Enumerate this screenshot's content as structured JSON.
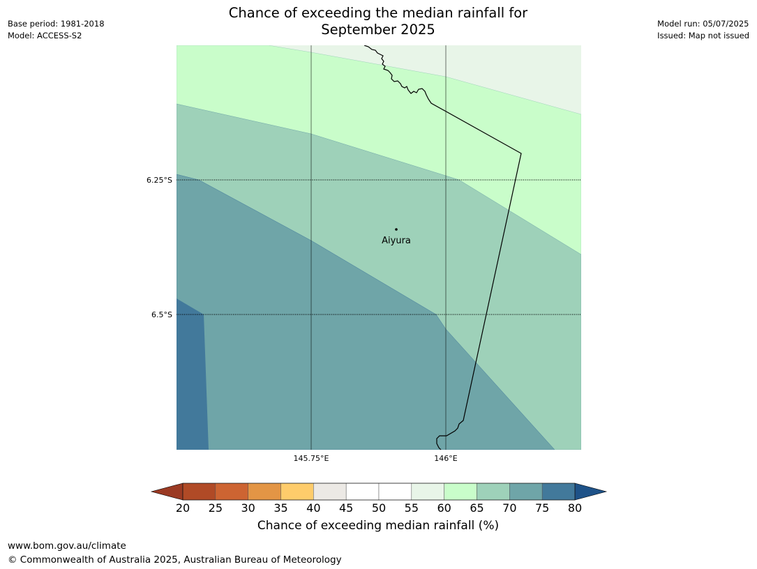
{
  "title_line1": "Chance of exceeding the median rainfall for",
  "title_line2": "September 2025",
  "meta_left": {
    "base_period": "Base period: 1981-2018",
    "model": "Model: ACCESS-S2"
  },
  "meta_right": {
    "model_run": "Model run: 05/07/2025",
    "issued": "Issued: Map not issued"
  },
  "map": {
    "lat_labels": [
      "6.25°S",
      "6.5°S"
    ],
    "lon_labels": [
      "145.75°E",
      "146°E"
    ],
    "place": "Aiyura"
  },
  "colorbar": {
    "ticks": [
      "20",
      "25",
      "30",
      "35",
      "40",
      "45",
      "50",
      "55",
      "60",
      "65",
      "70",
      "75",
      "80"
    ],
    "colors": [
      "#b04a26",
      "#cd6432",
      "#e39545",
      "#fecc6b",
      "#ece9e5",
      "#ffffff",
      "#ffffff",
      "#e8f5e8",
      "#c9fdca",
      "#9ed1b9",
      "#6fa5a8",
      "#42799b"
    ],
    "low_color": "#9b3a23",
    "high_color": "#1e5288",
    "label": "Chance of exceeding median rainfall (%)"
  },
  "footer": {
    "url": "www.bom.gov.au/climate",
    "copyright": "© Commonwealth of Australia 2025, Australian Bureau of Meteorology"
  }
}
